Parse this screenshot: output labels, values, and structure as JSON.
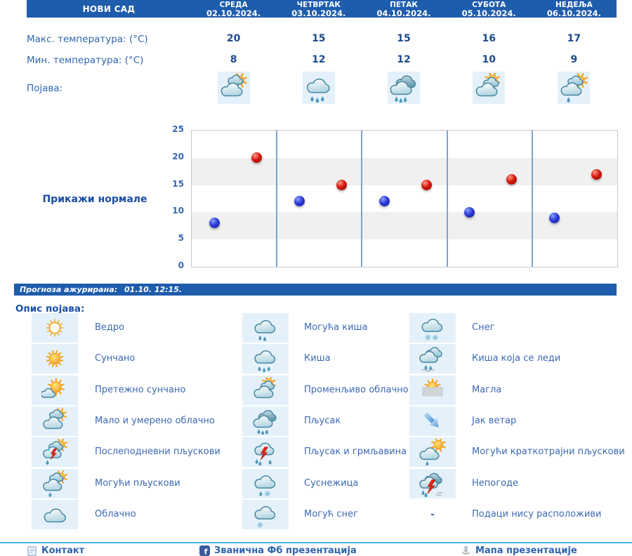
{
  "colors": {
    "header_bg": "#1e5cac",
    "header_text": "#ffffff",
    "label_text": "#2e66b2",
    "value_text": "#1b4a8c",
    "link_text": "#1c4da6",
    "legend_text": "#3c69b4",
    "icon_cell_bg": "#e4f1fa",
    "chart_band": "#f0f0f0",
    "chart_divider": "#7ba3cd",
    "min_dot": "#2d3bd8",
    "max_dot": "#d6190e",
    "footer_line": "#41b6e8",
    "footer_text": "#2d64b0"
  },
  "forecast": {
    "station": "НОВИ САД",
    "days": [
      {
        "name": "СРЕДА",
        "date": "02.10.2024."
      },
      {
        "name": "ЧЕТВРТАК",
        "date": "03.10.2024."
      },
      {
        "name": "ПЕТАК",
        "date": "04.10.2024."
      },
      {
        "name": "СУБОТА",
        "date": "05.10.2024."
      },
      {
        "name": "НЕДЕЉА",
        "date": "06.10.2024."
      }
    ],
    "rows": {
      "max_label": "Макс. температура: (°C)",
      "min_label": "Мин. температура: (°C)",
      "phenomena_label": "Појава:",
      "max_values": [
        "20",
        "15",
        "15",
        "16",
        "17"
      ],
      "min_values": [
        "8",
        "12",
        "12",
        "10",
        "9"
      ],
      "phenomena": [
        {
          "icon": "partly-cloudy-icon",
          "desc": "Мало и умерено облачно"
        },
        {
          "icon": "rain-icon",
          "desc": "Киша"
        },
        {
          "icon": "shower-icon",
          "desc": "Пљусак"
        },
        {
          "icon": "variable-cloudy-icon",
          "desc": "Променљиво облачно"
        },
        {
          "icon": "possible-showers-icon",
          "desc": "Могући пљускови"
        }
      ]
    }
  },
  "normals_link": "Прикажи нормале",
  "chart_data": {
    "type": "scatter",
    "title": "",
    "categories": [
      "02.10.2024.",
      "03.10.2024.",
      "04.10.2024.",
      "05.10.2024.",
      "06.10.2024."
    ],
    "series": [
      {
        "name": "Минимална температура (°C)",
        "color": "#2d3bd8",
        "values": [
          8,
          12,
          12,
          10,
          9
        ]
      },
      {
        "name": "Максимална температура (°C)",
        "color": "#d6190e",
        "values": [
          20,
          15,
          15,
          16,
          17
        ]
      }
    ],
    "ylim": [
      0,
      25
    ],
    "y_ticks": [
      0,
      5,
      10,
      15,
      20,
      25
    ],
    "grid": "horizontal-bands-and-day-dividers",
    "legend": "none"
  },
  "update_bar": {
    "label": "Прогноза ажурирана:",
    "value": "01.10. 12:15."
  },
  "legend_section": {
    "title": "Опис појава:",
    "columns": [
      [
        {
          "icon": "clear-icon",
          "label": "Ведро"
        },
        {
          "icon": "sunny-icon",
          "label": "Сунчано"
        },
        {
          "icon": "mostly-sunny-icon",
          "label": "Претежно сунчано"
        },
        {
          "icon": "partly-cloudy-icon",
          "label": "Мало и умерено облачно"
        },
        {
          "icon": "afternoon-showers-icon",
          "label": "Послеподневни пљускови"
        },
        {
          "icon": "possible-showers-icon",
          "label": "Могући пљускови"
        },
        {
          "icon": "cloudy-icon",
          "label": "Облачно"
        }
      ],
      [
        {
          "icon": "possible-rain-icon",
          "label": "Могућа киша"
        },
        {
          "icon": "rain-icon",
          "label": "Киша"
        },
        {
          "icon": "variable-cloudy-icon",
          "label": "Променљиво облачно"
        },
        {
          "icon": "shower-icon",
          "label": "Пљусак"
        },
        {
          "icon": "thunder-shower-icon",
          "label": "Пљусак и грмљавина"
        },
        {
          "icon": "sleet-icon",
          "label": "Суснежица"
        },
        {
          "icon": "possible-snow-icon",
          "label": "Могућ снег"
        }
      ],
      [
        {
          "icon": "snow-icon",
          "label": "Снег"
        },
        {
          "icon": "freezing-rain-icon",
          "label": "Киша која се леди"
        },
        {
          "icon": "fog-icon",
          "label": "Магла"
        },
        {
          "icon": "strong-wind-icon",
          "label": "Јак ветар"
        },
        {
          "icon": "short-showers-icon",
          "label": "Могући краткотрајни пљускови"
        },
        {
          "icon": "storms-icon",
          "label": "Непогоде"
        },
        {
          "icon": "no-data",
          "dash": "-",
          "label": "Подаци нису расположиви"
        }
      ]
    ]
  },
  "footer": {
    "items": [
      {
        "icon": "contact-icon",
        "label": "Контакт"
      },
      {
        "icon": "facebook-icon",
        "label": "Званична Фб презентација"
      },
      {
        "icon": "sitemap-icon",
        "label": "Мапа презентације"
      }
    ]
  }
}
